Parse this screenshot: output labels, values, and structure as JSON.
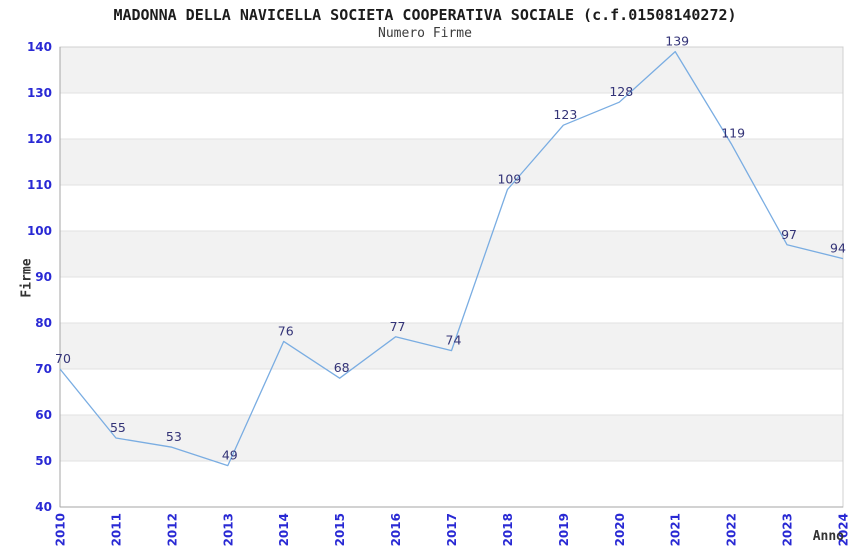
{
  "header": {
    "title": "MADONNA DELLA NAVICELLA SOCIETA COOPERATIVA SOCIALE (c.f.01508140272)",
    "subtitle": "Numero Firme"
  },
  "chart_data": {
    "type": "line",
    "title": "MADONNA DELLA NAVICELLA SOCIETA COOPERATIVA SOCIALE (c.f.01508140272)",
    "subtitle": "Numero Firme",
    "categories": [
      "2010",
      "2011",
      "2012",
      "2013",
      "2014",
      "2015",
      "2016",
      "2017",
      "2018",
      "2019",
      "2020",
      "2021",
      "2022",
      "2023",
      "2024"
    ],
    "series": [
      {
        "name": "Numero Firme",
        "values": [
          70,
          55,
          53,
          49,
          76,
          68,
          77,
          74,
          109,
          123,
          128,
          139,
          119,
          97,
          94
        ]
      }
    ],
    "xlabel": "Anno",
    "ylabel": "Firme",
    "ylim": [
      40,
      140
    ],
    "ytick_step": 10,
    "grid": "horizontal-alternating-bands",
    "legend": "none",
    "point_labels": true,
    "colors": {
      "line": "#7aade2",
      "tick_label": "#2929d4",
      "point_label": "#333377",
      "band": "#f2f2f2",
      "grid": "#e2e2e2",
      "axis": "#a6a6a6",
      "border": "#d0d0d0"
    }
  }
}
